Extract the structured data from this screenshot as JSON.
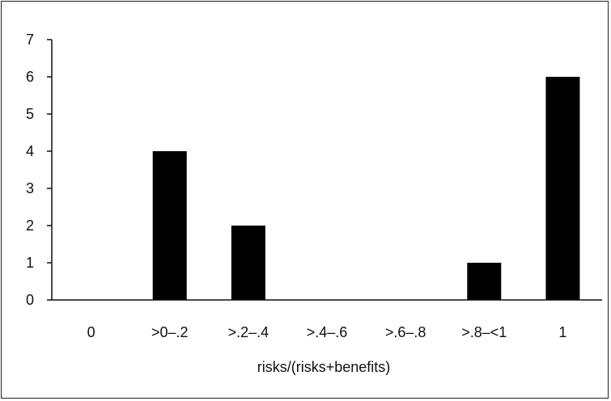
{
  "chart_data": {
    "type": "bar",
    "title": "",
    "xlabel": "risks/(risks+benefits)",
    "ylabel": "",
    "categories": [
      "0",
      ">0–.2",
      ">.2–.4",
      ">.4–.6",
      ">.6–.8",
      ">.8–<1",
      "1"
    ],
    "values": [
      0,
      4,
      2,
      0,
      0,
      1,
      6
    ],
    "ylim": [
      0,
      7
    ],
    "yticks": [
      "0",
      "1",
      "2",
      "3",
      "4",
      "5",
      "6",
      "7"
    ],
    "grid": false,
    "legend": "none",
    "bar_color": "#000000"
  }
}
